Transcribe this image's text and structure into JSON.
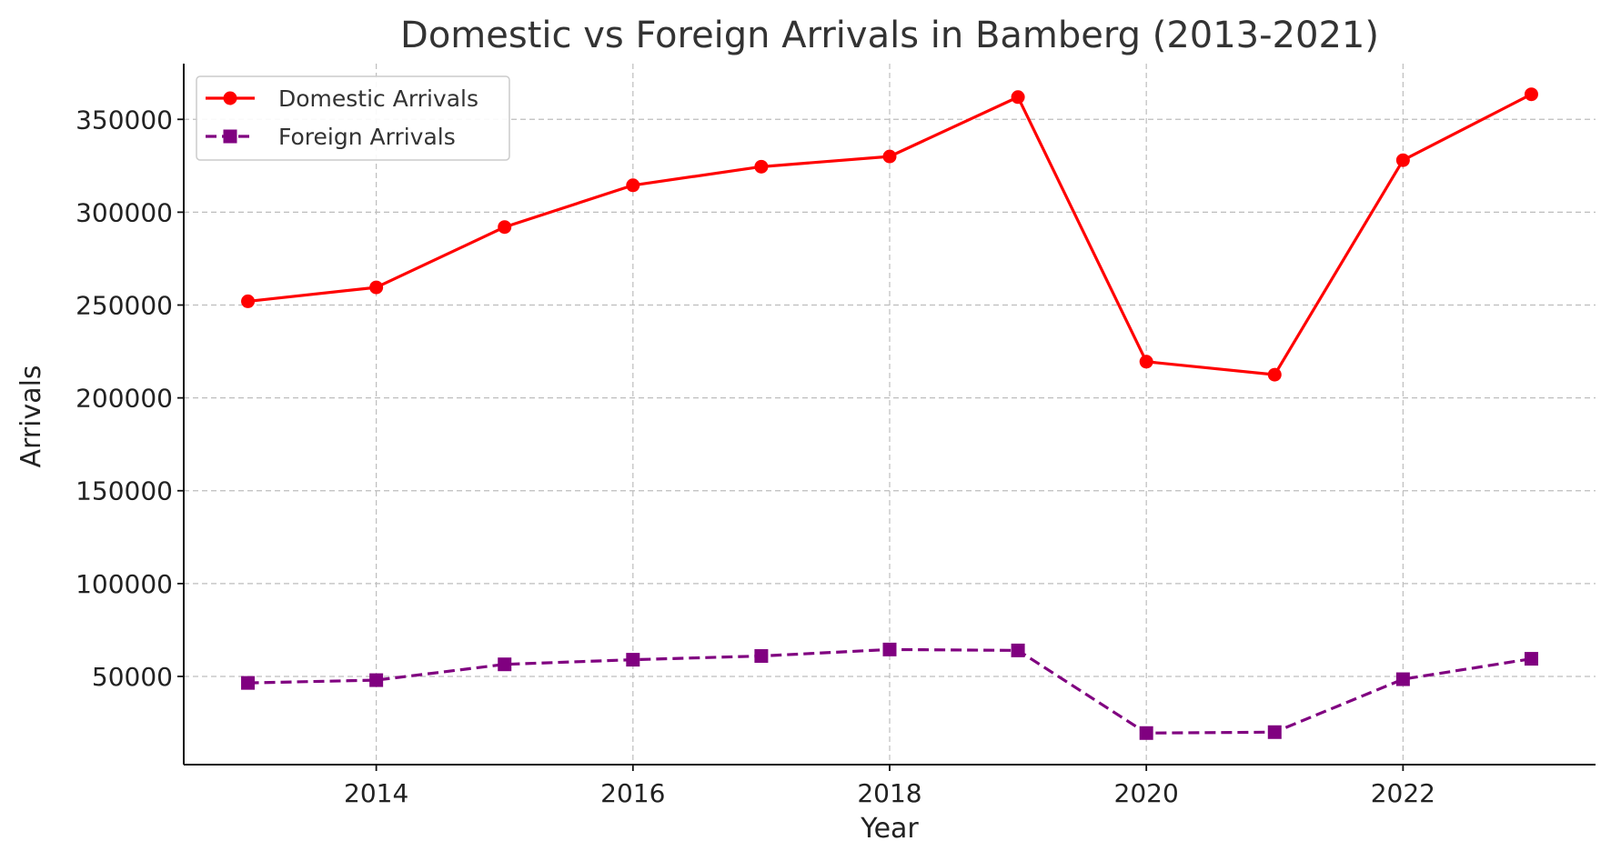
{
  "chart_data": {
    "type": "line",
    "title": "Domestic vs Foreign Arrivals in Bamberg (2013-2021)",
    "xlabel": "Year",
    "ylabel": "Arrivals",
    "xlim": [
      2012.5,
      2023.5
    ],
    "ylim": [
      2500,
      380000
    ],
    "x_ticks": [
      2014,
      2016,
      2018,
      2020,
      2022
    ],
    "y_ticks": [
      50000,
      100000,
      150000,
      200000,
      250000,
      300000,
      350000
    ],
    "grid": true,
    "legend_position": "top-left",
    "x": [
      2013,
      2014,
      2015,
      2016,
      2017,
      2018,
      2019,
      2020,
      2021,
      2022,
      2023
    ],
    "series": [
      {
        "name": "Domestic Arrivals",
        "color": "#ff0000",
        "marker": "circle",
        "line_style": "solid",
        "values": [
          252000,
          259500,
          292000,
          314500,
          324500,
          330000,
          362000,
          219500,
          212500,
          328000,
          363500
        ]
      },
      {
        "name": "Foreign Arrivals",
        "color": "#800080",
        "marker": "square",
        "line_style": "dashed",
        "values": [
          46500,
          48000,
          56500,
          59000,
          61000,
          64500,
          64000,
          19500,
          20000,
          48500,
          59500
        ]
      }
    ]
  }
}
